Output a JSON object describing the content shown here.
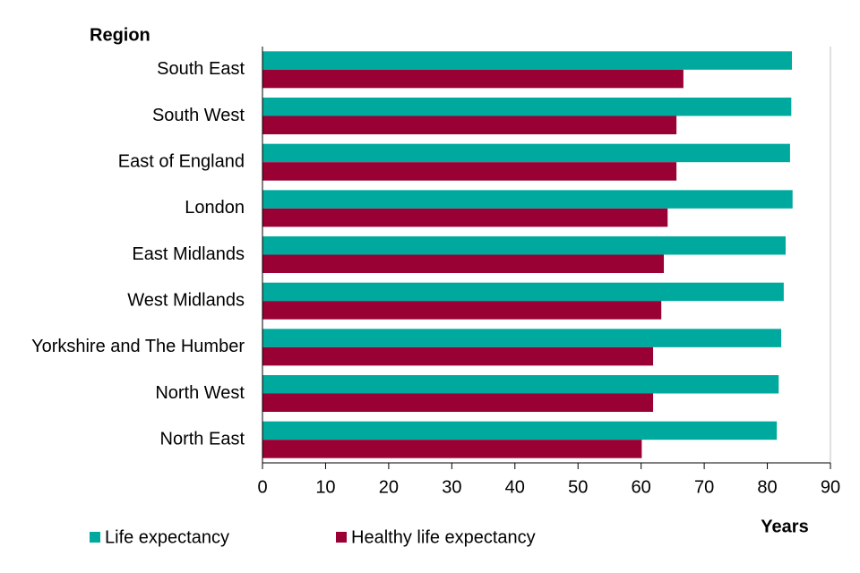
{
  "chart_data": {
    "type": "hbar",
    "y_label": "Region",
    "x_label": "Years",
    "categories": [
      "South East",
      "South West",
      "East of England",
      "London",
      "East Midlands",
      "West Midlands",
      "Yorkshire and The Humber",
      "North West",
      "North East"
    ],
    "series": [
      {
        "name": "Life expectancy",
        "color": "#00a99d",
        "values": [
          83.9,
          83.8,
          83.6,
          84.0,
          82.9,
          82.6,
          82.2,
          81.8,
          81.5
        ]
      },
      {
        "name": "Healthy life expectancy",
        "color": "#990033",
        "values": [
          66.7,
          65.6,
          65.6,
          64.2,
          63.6,
          63.2,
          61.9,
          61.9,
          60.1
        ]
      }
    ],
    "xlim": [
      0,
      90
    ],
    "xticks": [
      0,
      10,
      20,
      30,
      40,
      50,
      60,
      70,
      80,
      90
    ],
    "grid": false,
    "legend": "bottom"
  }
}
